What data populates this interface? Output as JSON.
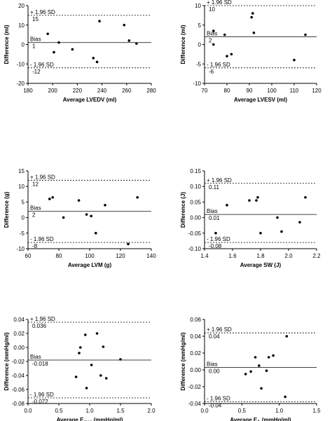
{
  "chart_data": [
    {
      "type": "scatter",
      "xlabel": "Average LVEDV (ml)",
      "ylabel": "Difference (ml)",
      "xlim": [
        180,
        280
      ],
      "xticks": [
        180,
        200,
        220,
        240,
        260,
        280
      ],
      "ylim": [
        -20,
        20
      ],
      "yticks": [
        -20,
        -10,
        0,
        10,
        20
      ],
      "upper_loa": {
        "label": "+ 1.96 SD",
        "value": 15,
        "value_label": "15"
      },
      "bias": {
        "label": "Bias",
        "value": 1,
        "value_label": "1"
      },
      "lower_loa": {
        "label": "- 1.96 SD",
        "value": -12,
        "value_label": "-12"
      },
      "points": [
        [
          196,
          5.5
        ],
        [
          201,
          -4
        ],
        [
          205,
          1
        ],
        [
          216,
          -2.5
        ],
        [
          233,
          -7
        ],
        [
          236,
          -9
        ],
        [
          238,
          12
        ],
        [
          258,
          10
        ],
        [
          262,
          2
        ],
        [
          268,
          0.5
        ]
      ]
    },
    {
      "type": "scatter",
      "xlabel": "Average LVESV (ml)",
      "ylabel": "Difference (ml)",
      "xlim": [
        70,
        120
      ],
      "xticks": [
        70,
        80,
        90,
        100,
        110,
        120
      ],
      "ylim": [
        -10,
        10
      ],
      "yticks": [
        -10,
        -5,
        0,
        5,
        10
      ],
      "upper_loa": {
        "label": "+ 1.96 SD",
        "value": 10,
        "value_label": "10"
      },
      "bias": {
        "label": "Bias",
        "value": 2,
        "value_label": "2"
      },
      "lower_loa": {
        "label": "- 1.96 SD",
        "value": -6,
        "value_label": "-6"
      },
      "points": [
        [
          74,
          3.5
        ],
        [
          74,
          0
        ],
        [
          79,
          2.5
        ],
        [
          80,
          -3
        ],
        [
          82,
          -2.5
        ],
        [
          91,
          7
        ],
        [
          91.5,
          8
        ],
        [
          92,
          3
        ],
        [
          110,
          -4
        ],
        [
          115,
          2.5
        ]
      ]
    },
    {
      "type": "scatter",
      "xlabel": "Average LVM (g)",
      "ylabel": "Difference (g)",
      "xlim": [
        60,
        140
      ],
      "xticks": [
        60,
        80,
        100,
        120,
        140
      ],
      "ylim": [
        -10,
        15
      ],
      "yticks": [
        -10,
        -5,
        0,
        5,
        10,
        15
      ],
      "upper_loa": {
        "label": "+ 1.96 SD",
        "value": 12,
        "value_label": "12"
      },
      "bias": {
        "label": "Bias",
        "value": 2,
        "value_label": "2"
      },
      "lower_loa": {
        "label": "- 1.96 SD",
        "value": -8,
        "value_label": "-8"
      },
      "points": [
        [
          74,
          6
        ],
        [
          76,
          6.5
        ],
        [
          83,
          0
        ],
        [
          93,
          5.5
        ],
        [
          98,
          1
        ],
        [
          101,
          0.5
        ],
        [
          104,
          -5
        ],
        [
          110,
          4
        ],
        [
          125,
          -8.5
        ],
        [
          131,
          6.5
        ]
      ]
    },
    {
      "type": "scatter",
      "xlabel": "Average SW (J)",
      "ylabel": "Difference (J)",
      "xlim": [
        1.4,
        2.2
      ],
      "xticks": [
        1.4,
        1.6,
        1.8,
        2.0,
        2.2
      ],
      "ylim": [
        -0.1,
        0.15
      ],
      "yticks": [
        -0.1,
        -0.05,
        0.0,
        0.05,
        0.1,
        0.15
      ],
      "upper_loa": {
        "label": "+ 1.96 SD",
        "value": 0.11,
        "value_label": "0.11"
      },
      "bias": {
        "label": "Bias",
        "value": 0.01,
        "value_label": "0.01"
      },
      "lower_loa": {
        "label": "- 1.96 SD",
        "value": -0.08,
        "value_label": "-0.08"
      },
      "points": [
        [
          1.48,
          -0.05
        ],
        [
          1.56,
          0.04
        ],
        [
          1.72,
          0.055
        ],
        [
          1.77,
          0.055
        ],
        [
          1.78,
          0.065
        ],
        [
          1.8,
          -0.05
        ],
        [
          1.92,
          0.0
        ],
        [
          1.95,
          -0.045
        ],
        [
          2.08,
          -0.015
        ],
        [
          2.12,
          0.065
        ]
      ]
    },
    {
      "type": "scatter",
      "xlabel": "Average Emax (mmHg/ml)",
      "xlabel_main": "Average E",
      "xlabel_sub": "max",
      "xlabel_tail": " (mmHg/ml)",
      "ylabel": "Difference (mmHg/ml)",
      "xlim": [
        0.0,
        2.0
      ],
      "xticks": [
        0.0,
        0.5,
        1.0,
        1.5,
        2.0
      ],
      "ylim": [
        -0.08,
        0.04
      ],
      "yticks": [
        -0.08,
        -0.06,
        -0.04,
        -0.02,
        0.0,
        0.02,
        0.04
      ],
      "upper_loa": {
        "label": "+ 1.96 SD",
        "value": 0.036,
        "value_label": "0.036"
      },
      "bias": {
        "label": "Bias",
        "value": -0.018,
        "value_label": "-0.018"
      },
      "lower_loa": {
        "label": "- 1.96 SD",
        "value": -0.072,
        "value_label": "-0.072"
      },
      "points": [
        [
          0.78,
          -0.042
        ],
        [
          0.83,
          -0.008
        ],
        [
          0.85,
          0.0
        ],
        [
          0.93,
          0.018
        ],
        [
          0.95,
          -0.058
        ],
        [
          1.03,
          -0.025
        ],
        [
          1.12,
          0.02
        ],
        [
          1.18,
          -0.04
        ],
        [
          1.22,
          0.001
        ],
        [
          1.27,
          -0.044
        ],
        [
          1.5,
          -0.017
        ]
      ]
    },
    {
      "type": "scatter",
      "xlabel": "Average EA (mmHg/ml)",
      "xlabel_main": "Average E",
      "xlabel_sub": "A",
      "xlabel_tail": " (mmHg/ml)",
      "ylabel": "Difference (mmHg/ml)",
      "xlim": [
        0.0,
        1.5
      ],
      "xticks": [
        0.0,
        0.5,
        1.0,
        1.5
      ],
      "ylim": [
        -0.04,
        0.06
      ],
      "yticks": [
        -0.04,
        -0.02,
        0.0,
        0.02,
        0.04,
        0.06
      ],
      "upper_loa": {
        "label": "+ 1.96 SD",
        "value": 0.044,
        "value_label": "0.04"
      },
      "bias": {
        "label": "Bias",
        "value": 0.003,
        "value_label": "0.00"
      },
      "lower_loa": {
        "label": "- 1.96 SD",
        "value": -0.038,
        "value_label": "-0.04"
      },
      "points": [
        [
          0.55,
          -0.005
        ],
        [
          0.62,
          -0.002
        ],
        [
          0.68,
          0.015
        ],
        [
          0.73,
          0.005
        ],
        [
          0.76,
          -0.022
        ],
        [
          0.83,
          -0.001
        ],
        [
          0.86,
          0.015
        ],
        [
          0.92,
          0.017
        ],
        [
          1.08,
          -0.032
        ],
        [
          1.1,
          0.04
        ]
      ]
    }
  ]
}
